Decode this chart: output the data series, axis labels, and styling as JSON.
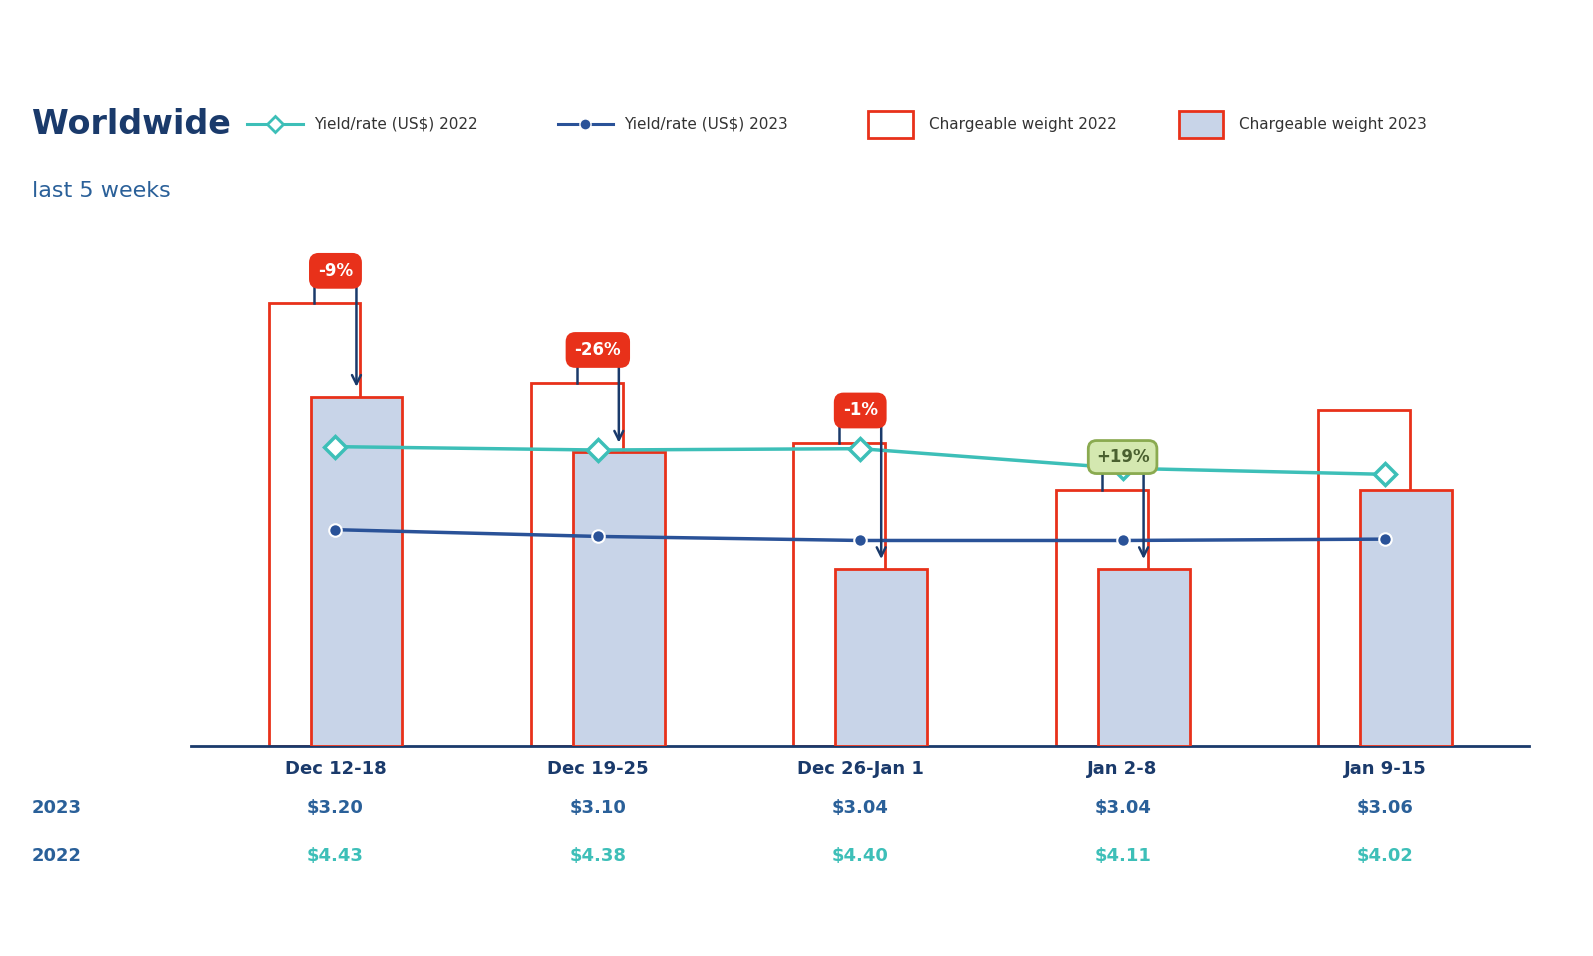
{
  "categories": [
    "Dec 12-18",
    "Dec 19-25",
    "Dec 26-Jan 1",
    "Jan 2-8",
    "Jan 9-15"
  ],
  "bar_2022": [
    95,
    78,
    65,
    55,
    72
  ],
  "bar_2023": [
    75,
    63,
    38,
    38,
    55
  ],
  "yield_2022": [
    4.43,
    4.38,
    4.4,
    4.11,
    4.02
  ],
  "yield_2023": [
    3.2,
    3.1,
    3.04,
    3.04,
    3.06
  ],
  "pct_labels": [
    "-9%",
    "-26%",
    "-1%",
    "+19%"
  ],
  "pct_colors": [
    "#e8311a",
    "#e8311a",
    "#e8311a",
    "#d4e8b0"
  ],
  "pct_text_colors": [
    "#ffffff",
    "#ffffff",
    "#ffffff",
    "#4a6030"
  ],
  "pct_edge_colors": [
    "#e8311a",
    "#e8311a",
    "#e8311a",
    "#8aaa50"
  ],
  "yield_2022_label": "Yield/rate (US$) 2022",
  "yield_2023_label": "Yield/rate (US$) 2023",
  "cw_2022_label": "Chargeable weight 2022",
  "cw_2023_label": "Chargeable weight 2023",
  "title_bold": "Worldwide",
  "title_sub": "last 5 weeks",
  "year_labels_2023": [
    "$3.20",
    "$3.10",
    "$3.04",
    "$3.04",
    "$3.06"
  ],
  "year_labels_2022": [
    "$4.43",
    "$4.38",
    "$4.40",
    "$4.11",
    "$4.02"
  ],
  "bar_2022_color": "#ffffff",
  "bar_2022_edge": "#e8311a",
  "bar_2023_color": "#c8d4e8",
  "bar_2023_edge": "#e8311a",
  "line_2022_color": "#3dbfb8",
  "line_2023_color": "#2a5298",
  "arrow_color": "#1a3a6b",
  "background_color": "#ffffff",
  "year_label_2023_color": "#2a6099",
  "year_label_2022_color": "#3dbfb8",
  "year_row_label_color": "#2a6099",
  "xlabel_color": "#1a3a6b",
  "yield_scale": 14.5,
  "ylim_max": 115
}
